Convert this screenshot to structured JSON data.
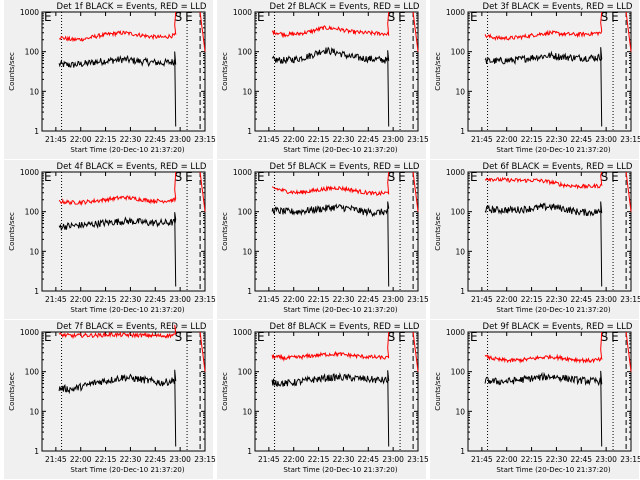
{
  "figure": {
    "background": "#ffffff",
    "panel_background": "#f0f0f0",
    "event_color": "#000000",
    "lld_color": "#ff0000"
  },
  "chart_data": [
    {
      "type": "line",
      "title": "Det 1f BLACK = Events, RED = LLD",
      "xlabel": "Start Time (20-Dec-10 21:37:20)",
      "ylabel": "Counts/sec",
      "y_scale": "log",
      "ylim": [
        1,
        1000
      ],
      "x_ticks": [
        "21:45",
        "22:00",
        "22:15",
        "22:30",
        "22:45",
        "23:00",
        "23:15"
      ],
      "y_ticks": [
        "1",
        "10",
        "100",
        "1000"
      ],
      "markers": [
        "E",
        "S",
        "E"
      ],
      "series": [
        {
          "name": "Events",
          "color": "#000000",
          "level": [
            48,
            46,
            50,
            56,
            60,
            64,
            58,
            54,
            52,
            56
          ]
        },
        {
          "name": "LLD",
          "color": "#ff0000",
          "level": [
            230,
            200,
            210,
            250,
            280,
            300,
            270,
            240,
            230,
            260
          ]
        }
      ]
    },
    {
      "type": "line",
      "title": "Det 2f BLACK = Events, RED = LLD",
      "xlabel": "Start Time (20-Dec-10 21:37:20)",
      "ylabel": "Counts/sec",
      "y_scale": "log",
      "ylim": [
        1,
        1000
      ],
      "x_ticks": [
        "21:45",
        "22:00",
        "22:15",
        "22:30",
        "22:45",
        "23:00",
        "23:15"
      ],
      "y_ticks": [
        "1",
        "10",
        "100",
        "1000"
      ],
      "markers": [
        "E",
        "S",
        "E"
      ],
      "series": [
        {
          "name": "Events",
          "color": "#000000",
          "level": [
            62,
            60,
            66,
            80,
            110,
            95,
            75,
            68,
            64,
            60
          ]
        },
        {
          "name": "LLD",
          "color": "#ff0000",
          "level": [
            320,
            270,
            280,
            320,
            400,
            380,
            320,
            300,
            290,
            280
          ]
        }
      ]
    },
    {
      "type": "line",
      "title": "Det 3f BLACK = Events, RED = LLD",
      "xlabel": "Start Time (20-Dec-10 21:37:20)",
      "ylabel": "Counts/sec",
      "y_scale": "log",
      "ylim": [
        1,
        1000
      ],
      "x_ticks": [
        "21:45",
        "22:00",
        "22:15",
        "22:30",
        "22:45",
        "23:00",
        "23:15"
      ],
      "y_ticks": [
        "1",
        "10",
        "100",
        "1000"
      ],
      "markers": [
        "E",
        "S",
        "E"
      ],
      "series": [
        {
          "name": "Events",
          "color": "#000000",
          "level": [
            58,
            58,
            60,
            66,
            74,
            80,
            74,
            70,
            70,
            72
          ]
        },
        {
          "name": "LLD",
          "color": "#ff0000",
          "level": [
            250,
            220,
            220,
            240,
            270,
            300,
            280,
            270,
            280,
            300
          ]
        }
      ]
    },
    {
      "type": "line",
      "title": "Det 4f BLACK = Events, RED = LLD",
      "xlabel": "Start Time (20-Dec-10 21:37:20)",
      "ylabel": "Counts/sec",
      "y_scale": "log",
      "ylim": [
        1,
        1000
      ],
      "x_ticks": [
        "21:45",
        "22:00",
        "22:15",
        "22:30",
        "22:45",
        "23:00",
        "23:15"
      ],
      "y_ticks": [
        "1",
        "10",
        "100",
        "1000"
      ],
      "markers": [
        "E",
        "S",
        "E"
      ],
      "series": [
        {
          "name": "Events",
          "color": "#000000",
          "level": [
            42,
            44,
            46,
            50,
            54,
            58,
            56,
            52,
            52,
            54
          ]
        },
        {
          "name": "LLD",
          "color": "#ff0000",
          "level": [
            180,
            170,
            175,
            190,
            210,
            230,
            210,
            190,
            185,
            200
          ]
        }
      ]
    },
    {
      "type": "line",
      "title": "Det 5f BLACK = Events, RED = LLD",
      "xlabel": "Start Time (20-Dec-10 21:37:20)",
      "ylabel": "Counts/sec",
      "y_scale": "log",
      "ylim": [
        1,
        1000
      ],
      "x_ticks": [
        "21:45",
        "22:00",
        "22:15",
        "22:30",
        "22:45",
        "23:00",
        "23:15"
      ],
      "y_ticks": [
        "1",
        "10",
        "100",
        "1000"
      ],
      "markers": [
        "E",
        "S",
        "E"
      ],
      "series": [
        {
          "name": "Events",
          "color": "#000000",
          "level": [
            110,
            100,
            100,
            110,
            120,
            130,
            120,
            100,
            95,
            100
          ]
        },
        {
          "name": "LLD",
          "color": "#ff0000",
          "level": [
            400,
            330,
            300,
            330,
            370,
            400,
            360,
            310,
            280,
            300
          ]
        }
      ]
    },
    {
      "type": "line",
      "title": "Det 6f BLACK = Events, RED = LLD",
      "xlabel": "Start Time (20-Dec-10 21:37:20)",
      "ylabel": "Counts/sec",
      "y_scale": "log",
      "ylim": [
        1,
        1000
      ],
      "x_ticks": [
        "21:45",
        "22:00",
        "22:15",
        "22:30",
        "22:45",
        "23:00",
        "23:15"
      ],
      "y_ticks": [
        "1",
        "10",
        "100",
        "1000"
      ],
      "markers": [
        "E",
        "S",
        "E"
      ],
      "series": [
        {
          "name": "Events",
          "color": "#000000",
          "level": [
            115,
            110,
            110,
            115,
            125,
            135,
            120,
            100,
            95,
            100
          ]
        },
        {
          "name": "LLD",
          "color": "#ff0000",
          "level": [
            690,
            640,
            620,
            610,
            620,
            560,
            470,
            440,
            430,
            450
          ]
        }
      ]
    },
    {
      "type": "line",
      "title": "Det 7f BLACK = Events, RED = LLD",
      "xlabel": "Start Time (20-Dec-10 21:37:20)",
      "ylabel": "Counts/sec",
      "y_scale": "log",
      "ylim": [
        1,
        1000
      ],
      "x_ticks": [
        "21:45",
        "22:00",
        "22:15",
        "22:30",
        "22:45",
        "23:00",
        "23:15"
      ],
      "y_ticks": [
        "1",
        "10",
        "100",
        "1000"
      ],
      "markers": [
        "E",
        "S",
        "E"
      ],
      "series": [
        {
          "name": "Events",
          "color": "#000000",
          "level": [
            38,
            36,
            44,
            55,
            62,
            72,
            66,
            58,
            52,
            62
          ]
        },
        {
          "name": "LLD",
          "color": "#ff0000",
          "level": [
            850,
            800,
            830,
            820,
            860,
            840,
            830,
            820,
            800,
            840
          ]
        }
      ]
    },
    {
      "type": "line",
      "title": "Det 8f BLACK = Events, RED = LLD",
      "xlabel": "Start Time (20-Dec-10 21:37:20)",
      "ylabel": "Counts/sec",
      "y_scale": "log",
      "ylim": [
        1,
        1000
      ],
      "x_ticks": [
        "21:45",
        "22:00",
        "22:15",
        "22:30",
        "22:45",
        "23:00",
        "23:15"
      ],
      "y_ticks": [
        "1",
        "10",
        "100",
        "1000"
      ],
      "markers": [
        "E",
        "S",
        "E"
      ],
      "series": [
        {
          "name": "Events",
          "color": "#000000",
          "level": [
            55,
            50,
            55,
            62,
            68,
            72,
            70,
            66,
            62,
            60
          ]
        },
        {
          "name": "LLD",
          "color": "#ff0000",
          "level": [
            240,
            220,
            230,
            250,
            270,
            280,
            260,
            240,
            230,
            220
          ]
        }
      ]
    },
    {
      "type": "line",
      "title": "Det 9f BLACK = Events, RED = LLD",
      "xlabel": "Start Time (20-Dec-10 21:37:20)",
      "ylabel": "Counts/sec",
      "y_scale": "log",
      "ylim": [
        1,
        1000
      ],
      "x_ticks": [
        "21:45",
        "22:00",
        "22:15",
        "22:30",
        "22:45",
        "23:00",
        "23:15"
      ],
      "y_ticks": [
        "1",
        "10",
        "100",
        "1000"
      ],
      "markers": [
        "E",
        "S",
        "E"
      ],
      "series": [
        {
          "name": "Events",
          "color": "#000000",
          "level": [
            60,
            56,
            58,
            64,
            70,
            76,
            70,
            62,
            58,
            58
          ]
        },
        {
          "name": "LLD",
          "color": "#ff0000",
          "level": [
            240,
            200,
            190,
            200,
            220,
            240,
            220,
            200,
            190,
            200
          ]
        }
      ]
    }
  ]
}
